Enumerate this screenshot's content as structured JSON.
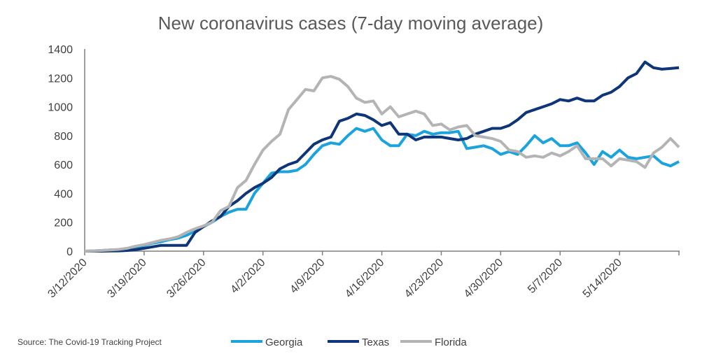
{
  "chart_data": {
    "type": "line",
    "title": "New coronavirus cases (7-day moving average)",
    "xlabel": "",
    "ylabel": "",
    "ylim": [
      0,
      1400
    ],
    "yticks": [
      "0",
      "200",
      "400",
      "600",
      "800",
      "1000",
      "1200",
      "1400"
    ],
    "xticks": [
      "3/12/2020",
      "3/19/2020",
      "3/26/2020",
      "4/2/2020",
      "4/9/2020",
      "4/16/2020",
      "4/23/2020",
      "4/30/2020",
      "5/7/2020",
      "5/14/2020"
    ],
    "x_start": "3/12/2020",
    "x_end": "5/21/2020",
    "grid": false,
    "legend_position": "bottom",
    "source": "Source: The Covid-19  Tracking Project",
    "series": [
      {
        "name": "Georgia",
        "color": "#1aa3dc",
        "values": [
          0,
          2,
          5,
          8,
          10,
          15,
          25,
          40,
          55,
          65,
          80,
          90,
          110,
          140,
          170,
          200,
          240,
          270,
          290,
          290,
          400,
          470,
          540,
          550,
          550,
          560,
          600,
          670,
          730,
          750,
          740,
          800,
          850,
          830,
          850,
          770,
          730,
          730,
          810,
          800,
          830,
          810,
          820,
          820,
          830,
          710,
          720,
          730,
          710,
          670,
          690,
          670,
          730,
          800,
          750,
          780,
          730,
          730,
          750,
          680,
          600,
          690,
          650,
          700,
          650,
          640,
          650,
          660,
          610,
          590,
          620
        ]
      },
      {
        "name": "Texas",
        "color": "#0d3578",
        "values": [
          0,
          0,
          0,
          1,
          2,
          5,
          10,
          20,
          30,
          40,
          40,
          40,
          40,
          130,
          170,
          210,
          240,
          310,
          350,
          400,
          440,
          470,
          510,
          570,
          600,
          620,
          680,
          740,
          770,
          790,
          900,
          920,
          950,
          940,
          910,
          870,
          890,
          810,
          810,
          770,
          790,
          790,
          790,
          780,
          770,
          780,
          810,
          830,
          850,
          850,
          870,
          910,
          960,
          980,
          1000,
          1020,
          1050,
          1040,
          1060,
          1040,
          1040,
          1080,
          1100,
          1140,
          1200,
          1230,
          1310,
          1270,
          1260,
          1265,
          1270
        ]
      },
      {
        "name": "Florida",
        "color": "#b4b4b4",
        "values": [
          0,
          2,
          5,
          8,
          12,
          20,
          35,
          45,
          60,
          75,
          85,
          100,
          130,
          155,
          175,
          200,
          280,
          310,
          440,
          490,
          600,
          700,
          760,
          810,
          980,
          1050,
          1120,
          1110,
          1200,
          1210,
          1190,
          1140,
          1060,
          1030,
          1040,
          950,
          1000,
          930,
          950,
          970,
          950,
          870,
          880,
          840,
          860,
          870,
          800,
          790,
          780,
          760,
          700,
          690,
          650,
          660,
          650,
          680,
          660,
          690,
          730,
          640,
          640,
          640,
          590,
          640,
          630,
          620,
          580,
          680,
          720,
          780,
          720
        ]
      }
    ]
  }
}
